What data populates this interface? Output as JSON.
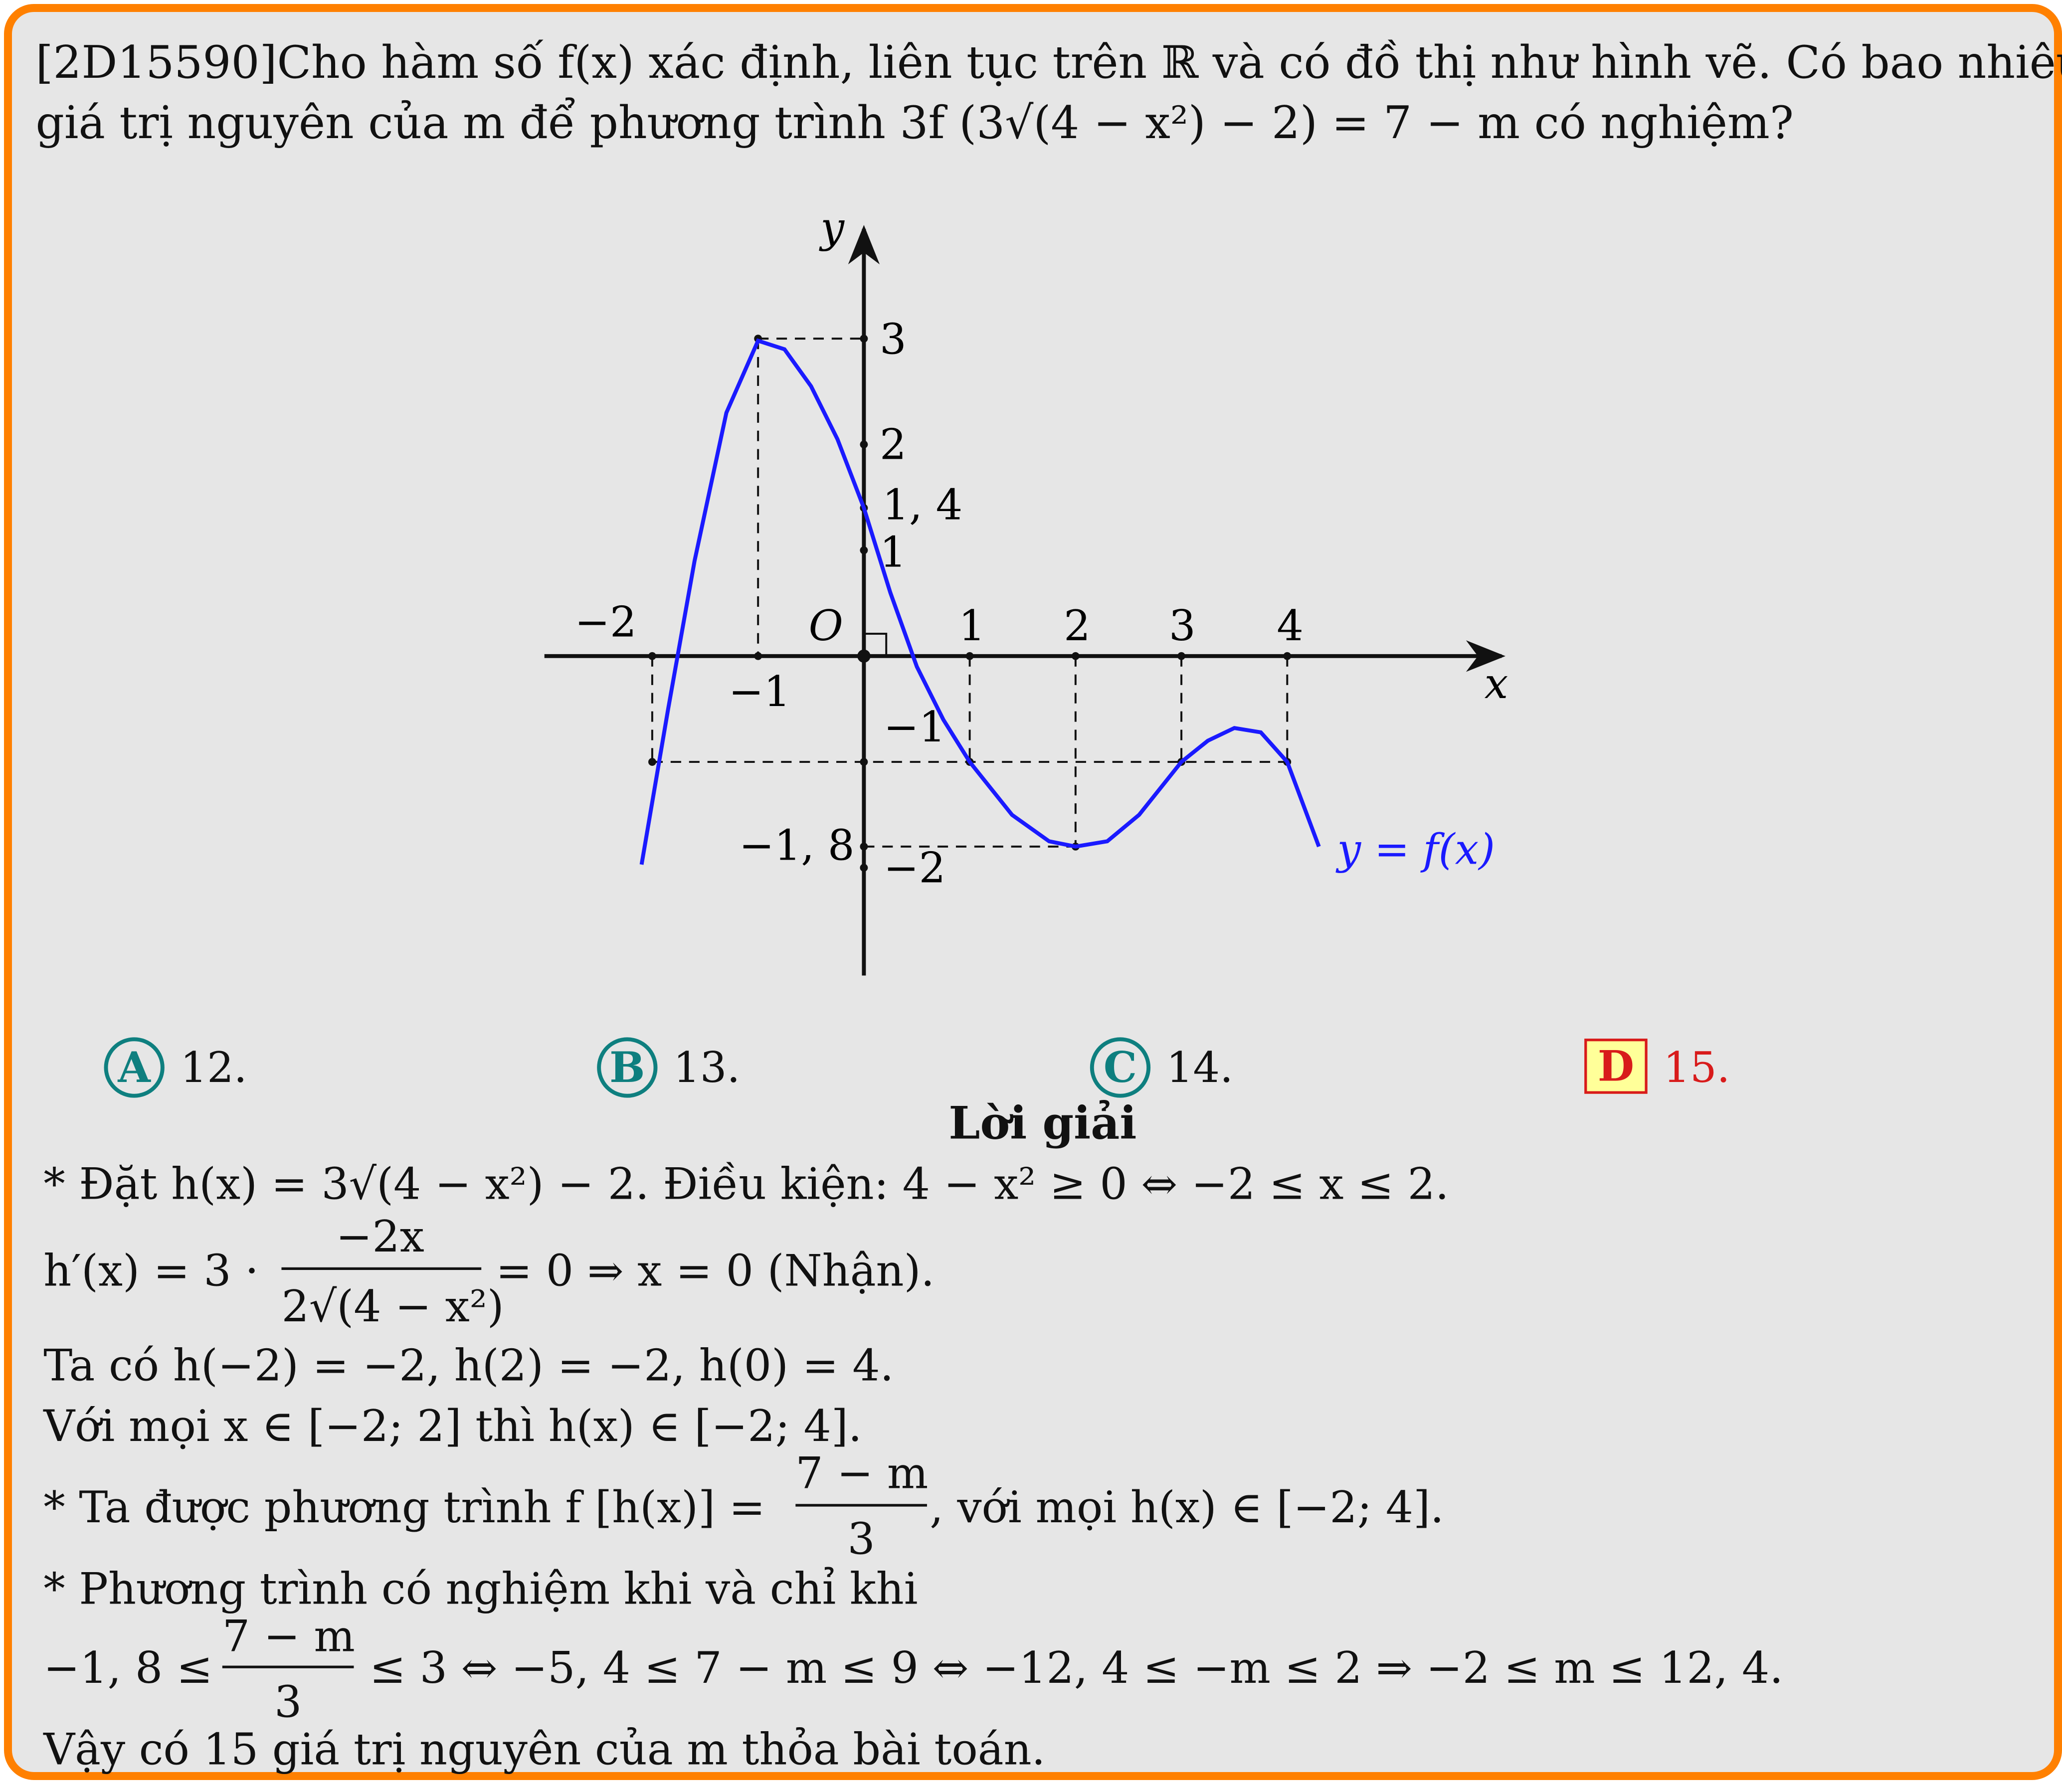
{
  "problem": {
    "line1": "[2D15590]Cho hàm số f(x) xác định, liên tục trên ℝ và có đồ thị như hình vẽ. Có bao nhiêu",
    "line2": "giá trị nguyên của m để phương trình 3f (3√(4 − x²) − 2) = 7 − m có nghiệm?"
  },
  "graph": {
    "axis_x_label": "x",
    "axis_y_label": "y",
    "origin_label": "O",
    "curve_label": "y = f(x)",
    "x_ticks": [
      "−2",
      "−1",
      "1",
      "2",
      "3",
      "4"
    ],
    "y_ticks": [
      "3",
      "2",
      "1, 4",
      "1",
      "−1",
      "−1, 8",
      "−2"
    ],
    "curve_color": "#1a1aff"
  },
  "chart_data": {
    "type": "line",
    "x": [
      -2.1,
      -1.85,
      -1.6,
      -1.3,
      -1.0,
      -0.75,
      -0.5,
      -0.25,
      0.0,
      0.25,
      0.5,
      0.75,
      1.0,
      1.4,
      1.75,
      2.0,
      2.3,
      2.6,
      3.0,
      3.25,
      3.5,
      3.75,
      4.0,
      4.3
    ],
    "y": [
      -1.97,
      -0.5,
      0.9,
      2.3,
      2.98,
      2.9,
      2.55,
      2.05,
      1.4,
      0.6,
      -0.1,
      -0.6,
      -1.0,
      -1.5,
      -1.75,
      -1.8,
      -1.75,
      -1.5,
      -1.0,
      -0.8,
      -0.68,
      -0.72,
      -1.0,
      -1.8
    ],
    "xlabel": "x",
    "ylabel": "y",
    "series_label": "y = f(x)",
    "grid": false
  },
  "options": [
    {
      "letter": "A",
      "text": "12."
    },
    {
      "letter": "B",
      "text": "13."
    },
    {
      "letter": "C",
      "text": "14."
    },
    {
      "letter": "D",
      "text": "15."
    }
  ],
  "solution": {
    "title": "Lời giải",
    "l1": "* Đặt h(x) = 3√(4 − x²) − 2. Điều kiện: 4 − x² ≥ 0 ⇔ −2 ≤ x ≤ 2.",
    "l2a": "h′(x) = 3 ·",
    "l2num": "−2x",
    "l2den": "2√(4 − x²)",
    "l2b": "= 0 ⇒ x = 0 (Nhận).",
    "l3": "Ta có h(−2) = −2, h(2) = −2, h(0) = 4.",
    "l4": "Với mọi x ∈ [−2; 2] thì h(x) ∈ [−2; 4].",
    "l5a": "* Ta được phương trình f [h(x)] =",
    "l5num": "7 − m",
    "l5den": "3",
    "l5b": ", với mọi h(x) ∈ [−2; 4].",
    "l6": "* Phương trình có nghiệm khi và chỉ khi",
    "l7a": "−1, 8 ≤",
    "l7num": "7 − m",
    "l7den": "3",
    "l7b": "≤ 3 ⇔ −5, 4 ≤ 7 − m ≤ 9 ⇔ −12, 4 ≤ −m ≤ 2 ⇒ −2 ≤ m ≤ 12, 4.",
    "l8": "Vậy có 15 giá trị nguyên của m thỏa bài toán."
  }
}
